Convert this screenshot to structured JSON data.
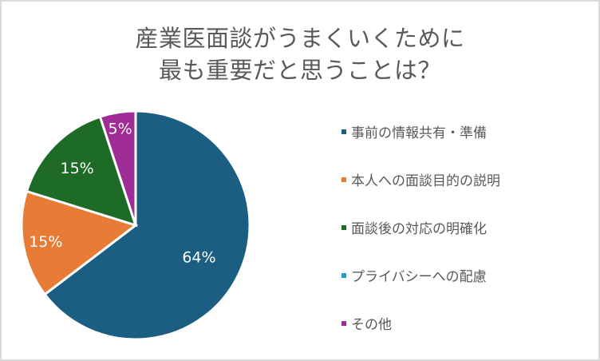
{
  "chart_data": {
    "type": "pie",
    "title": "産業医面談がうまくいくために\n最も重要だと思うことは？",
    "title_lines": [
      "産業医面談がうまくいくために",
      "最も重要だと思うことは？"
    ],
    "categories": [
      "事前の情報共有・準備",
      "本人への面談目的の説明",
      "面談後の対応の明確化",
      "プライバシーへの配慮",
      "その他"
    ],
    "values": [
      64,
      15,
      15,
      0,
      5
    ],
    "labels": [
      "64%",
      "15%",
      "15%",
      "",
      "5%"
    ],
    "colors": [
      "#1b5e82",
      "#e87b35",
      "#1e6b28",
      "#1aa0d0",
      "#a02c95"
    ],
    "legend_position": "right",
    "start_angle": "top, clockwise"
  }
}
